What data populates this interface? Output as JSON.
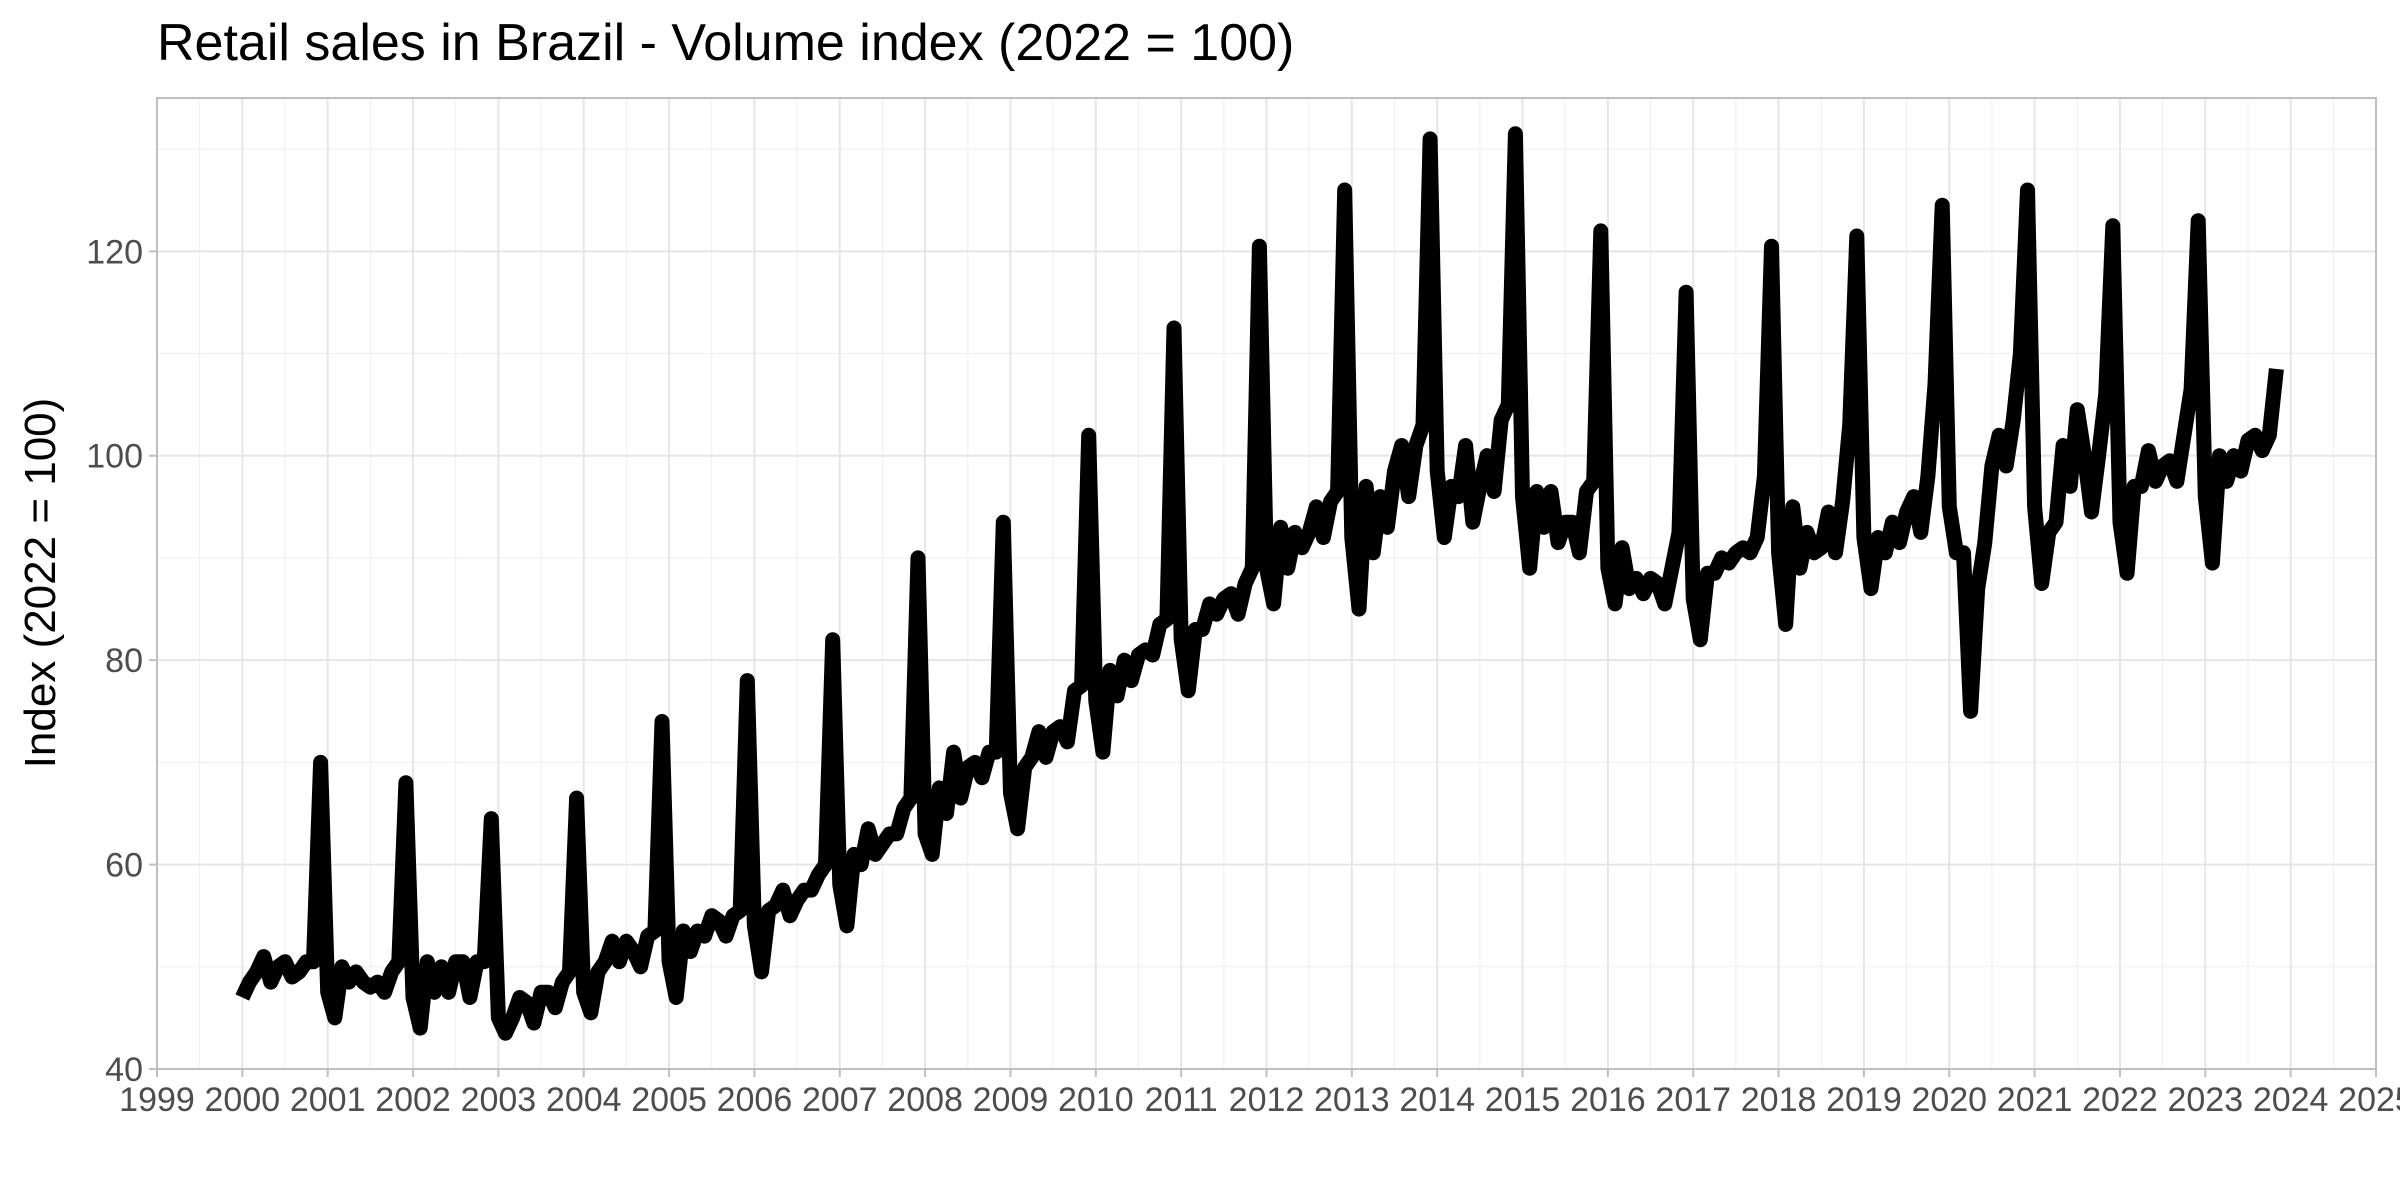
{
  "chart_data": {
    "type": "line",
    "title": "Retail sales in Brazil - Volume index (2022 = 100)",
    "xlabel": "",
    "ylabel": "Index (2022 = 100)",
    "xlim": [
      1999,
      2025
    ],
    "ylim": [
      40,
      135
    ],
    "x_ticks": [
      1999,
      2000,
      2001,
      2002,
      2003,
      2004,
      2005,
      2006,
      2007,
      2008,
      2009,
      2010,
      2011,
      2012,
      2013,
      2014,
      2015,
      2016,
      2017,
      2018,
      2019,
      2020,
      2021,
      2022,
      2023,
      2024,
      2025
    ],
    "y_ticks": [
      40,
      60,
      80,
      100,
      120
    ],
    "grid": true,
    "legend": "none",
    "colors": {
      "line": "#000000",
      "grid": "#e6e6e6",
      "border": "#bfbfbf",
      "tick_label": "#4d4d4d"
    },
    "series": [
      {
        "start_year": 2000,
        "start_month": 1,
        "frequency": "monthly",
        "values": [
          47.0,
          48.5,
          49.5,
          51.0,
          48.5,
          50.0,
          50.5,
          49.0,
          49.5,
          50.5,
          50.5,
          70.0,
          47.5,
          45.0,
          50.0,
          48.5,
          49.5,
          48.5,
          48.0,
          48.5,
          47.5,
          49.5,
          50.5,
          68.0,
          47.0,
          44.0,
          50.5,
          47.5,
          50.0,
          47.5,
          50.5,
          50.5,
          47.0,
          50.5,
          50.5,
          64.5,
          45.0,
          43.5,
          45.0,
          47.0,
          46.5,
          44.5,
          47.5,
          47.5,
          46.0,
          48.5,
          49.5,
          66.5,
          47.5,
          45.5,
          49.5,
          50.5,
          52.5,
          50.5,
          52.5,
          51.5,
          50.0,
          53.0,
          53.5,
          74.0,
          50.5,
          47.0,
          53.5,
          51.5,
          53.5,
          53.0,
          55.0,
          54.5,
          53.0,
          55.0,
          55.5,
          78.0,
          54.0,
          49.5,
          55.5,
          56.0,
          57.5,
          55.0,
          56.5,
          57.5,
          57.5,
          59.0,
          60.0,
          82.0,
          58.0,
          54.0,
          61.0,
          60.0,
          63.5,
          61.0,
          62.0,
          63.0,
          63.0,
          65.5,
          66.5,
          90.0,
          63.0,
          61.0,
          67.5,
          65.0,
          71.0,
          66.5,
          69.5,
          70.0,
          68.5,
          71.0,
          71.0,
          93.5,
          67.0,
          63.5,
          69.5,
          70.5,
          73.0,
          70.5,
          73.0,
          73.5,
          72.0,
          77.0,
          77.5,
          102.0,
          76.0,
          71.0,
          79.0,
          76.5,
          80.0,
          78.0,
          80.5,
          81.0,
          80.5,
          83.5,
          84.0,
          112.5,
          82.0,
          77.0,
          83.0,
          83.0,
          85.5,
          84.5,
          86.0,
          86.5,
          84.5,
          87.5,
          89.0,
          120.5,
          89.0,
          85.5,
          93.0,
          89.0,
          92.5,
          91.0,
          92.5,
          95.0,
          92.0,
          95.5,
          96.5,
          126.0,
          92.0,
          85.0,
          97.0,
          90.5,
          96.0,
          93.0,
          98.5,
          101.0,
          96.0,
          101.0,
          103.0,
          131.0,
          98.5,
          92.0,
          97.0,
          96.0,
          101.0,
          93.5,
          97.0,
          100.0,
          96.5,
          103.5,
          105.0,
          131.5,
          96.0,
          89.0,
          96.5,
          93.0,
          96.5,
          91.5,
          93.5,
          93.5,
          90.5,
          96.5,
          97.5,
          122.0,
          89.0,
          85.5,
          91.0,
          87.0,
          88.0,
          86.5,
          88.0,
          87.5,
          85.5,
          89.0,
          92.5,
          116.0,
          86.0,
          82.0,
          88.5,
          88.5,
          90.0,
          89.5,
          90.5,
          91.0,
          90.5,
          92.0,
          98.0,
          120.5,
          90.5,
          83.5,
          95.0,
          89.0,
          92.5,
          90.5,
          91.0,
          94.5,
          90.5,
          95.5,
          103.0,
          121.5,
          92.0,
          87.0,
          92.0,
          90.5,
          93.5,
          91.5,
          94.5,
          96.0,
          92.5,
          98.0,
          107.0,
          124.5,
          95.0,
          90.5,
          90.5,
          75.0,
          87.0,
          91.5,
          99.0,
          102.0,
          99.0,
          103.5,
          110.0,
          126.0,
          95.0,
          87.5,
          92.5,
          93.5,
          101.0,
          97.0,
          104.5,
          100.0,
          94.5,
          100.0,
          106.0,
          122.5,
          93.5,
          88.5,
          97.0,
          97.0,
          100.5,
          97.5,
          99.0,
          99.5,
          97.5,
          102.0,
          106.5,
          123.0,
          96.0,
          89.5,
          100.0,
          97.5,
          100.0,
          98.5,
          101.5,
          102.0,
          100.5,
          102.0,
          108.5
        ]
      }
    ]
  }
}
